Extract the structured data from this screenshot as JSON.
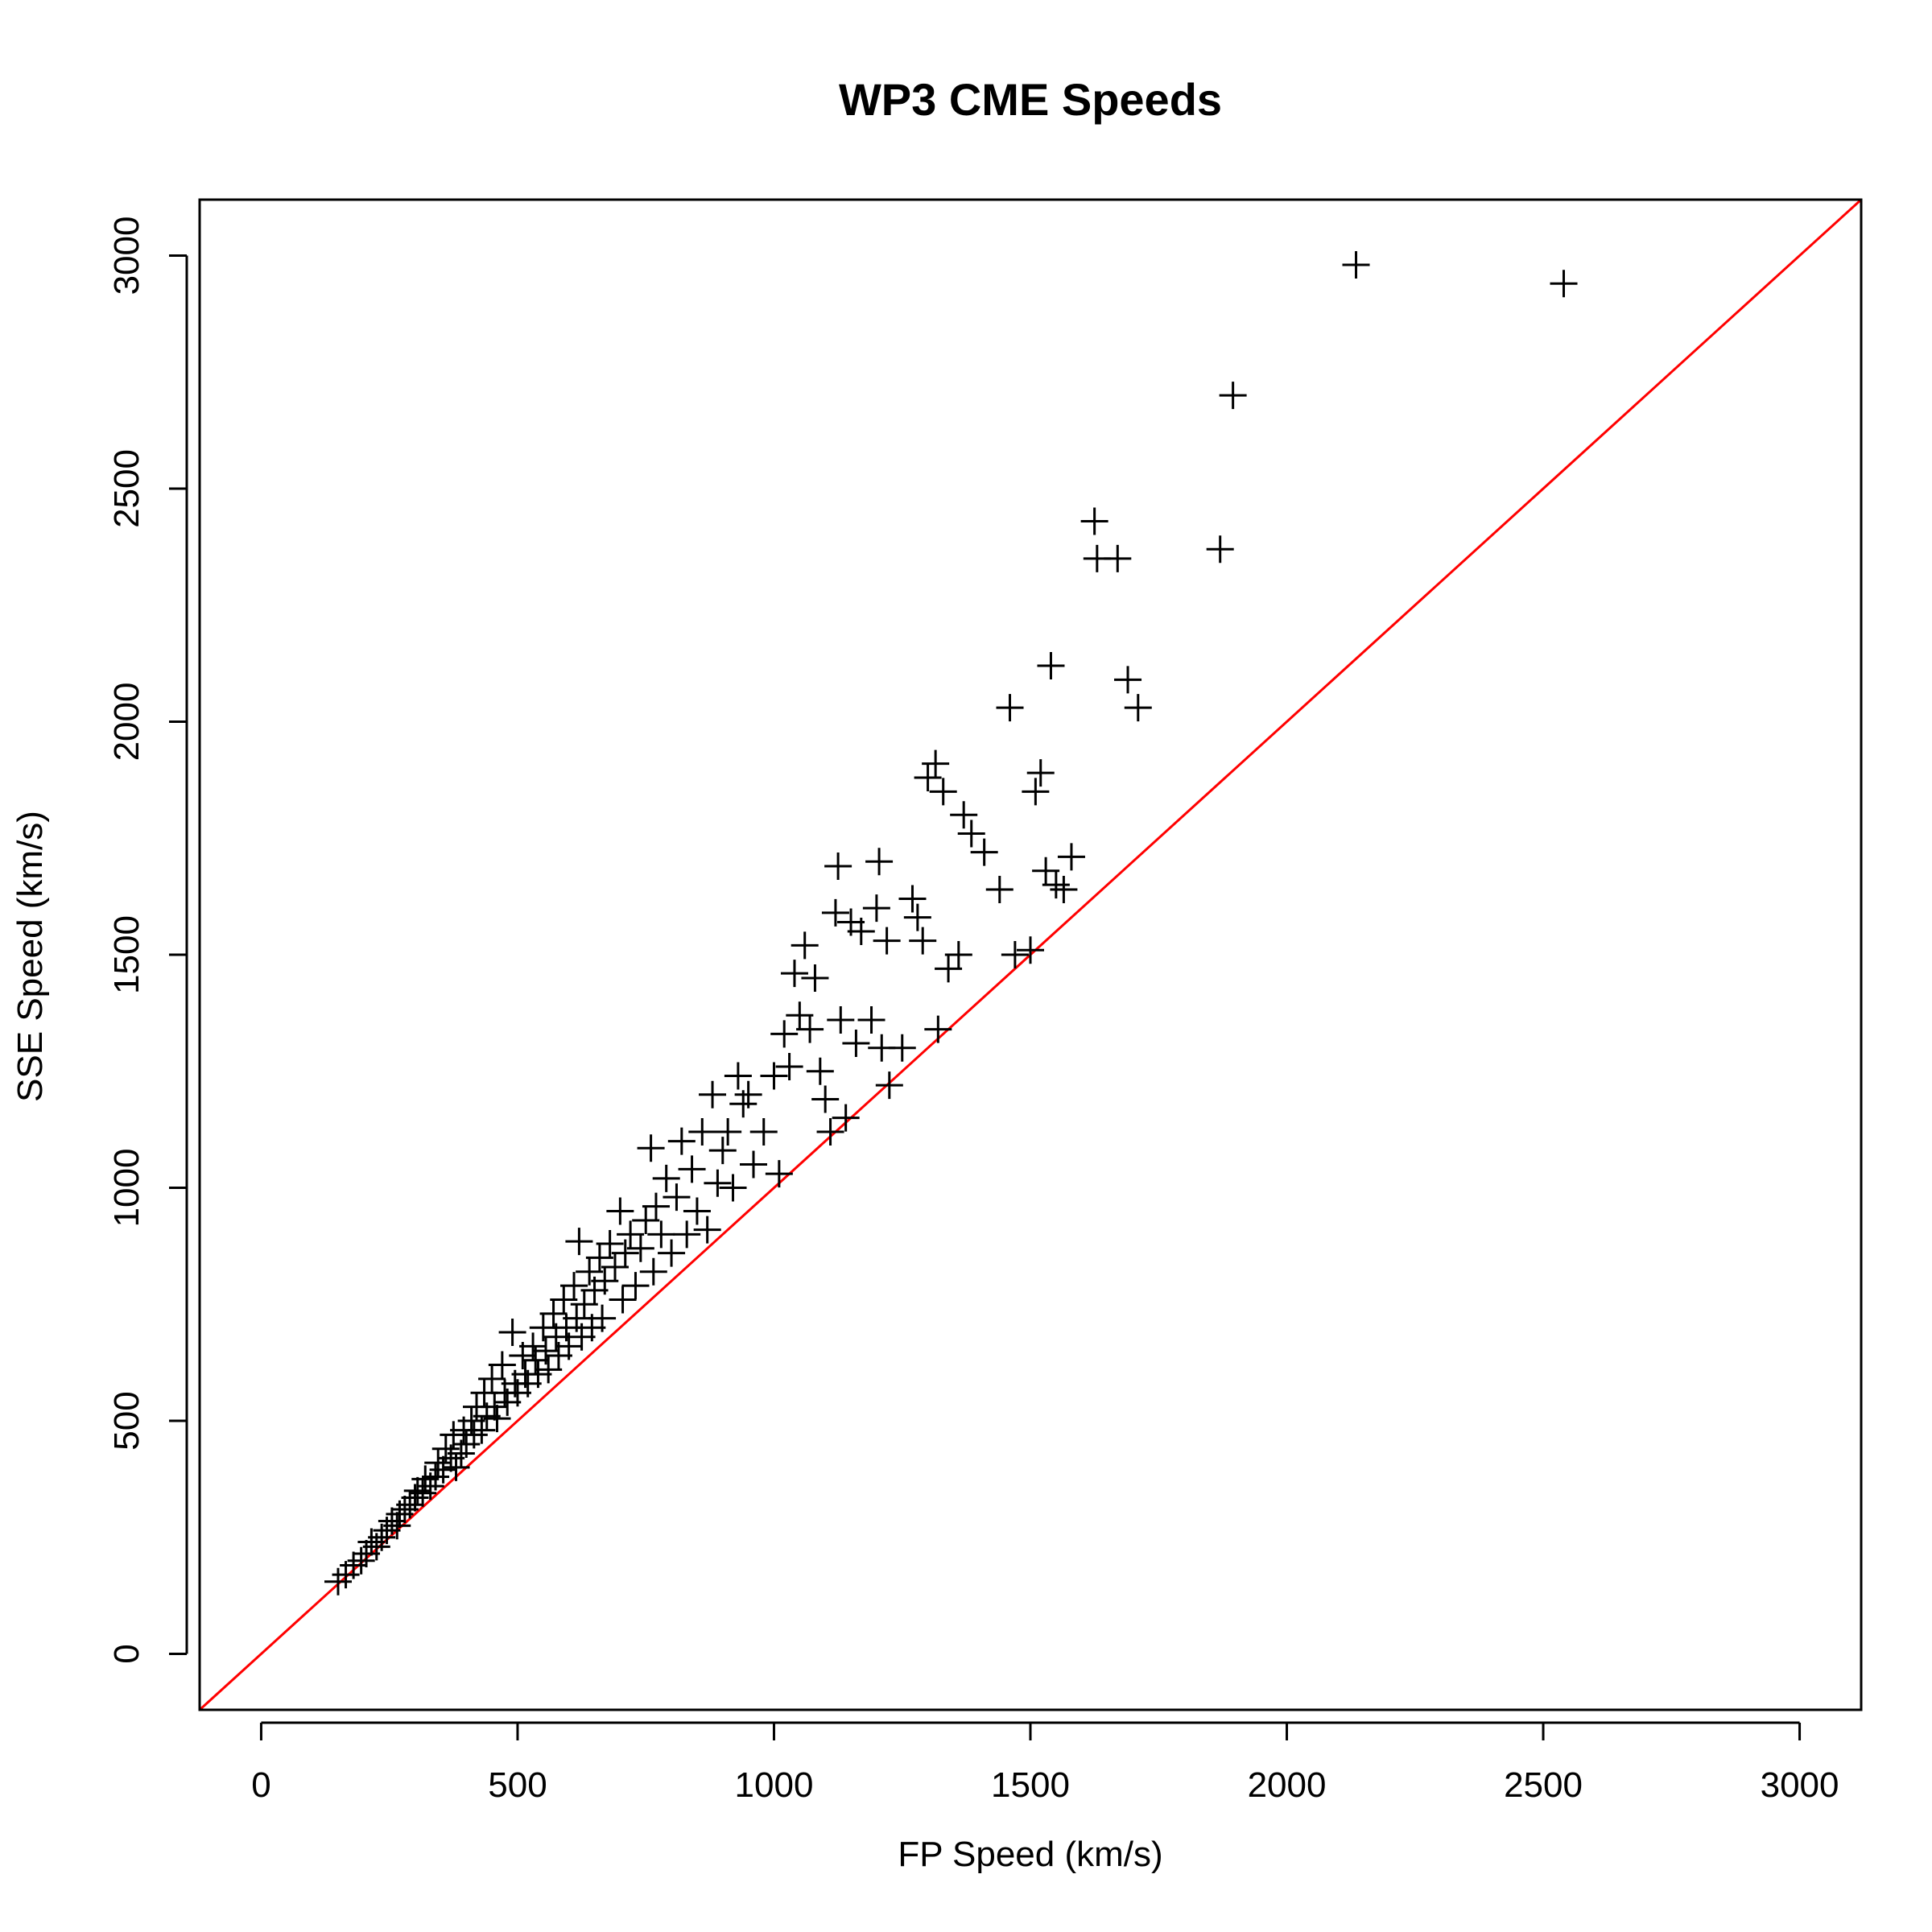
{
  "chart_data": {
    "type": "scatter",
    "title": "WP3 CME Speeds",
    "xlabel": "FP Speed (km/s)",
    "ylabel": "SSE Speed (km/s)",
    "xlim": [
      -120,
      3120
    ],
    "ylim": [
      -120,
      3120
    ],
    "xticks": [
      0,
      500,
      1000,
      1500,
      2000,
      2500,
      3000
    ],
    "yticks": [
      0,
      500,
      1000,
      1500,
      2000,
      2500,
      3000
    ],
    "grid": false,
    "legend": "none",
    "marker": "plus",
    "point_color": "#000000",
    "reference_line": {
      "type": "identity",
      "color": "#ff0000"
    },
    "series": [
      {
        "points": [
          [
            150,
            155
          ],
          [
            165,
            170
          ],
          [
            180,
            190
          ],
          [
            195,
            200
          ],
          [
            205,
            215
          ],
          [
            215,
            240
          ],
          [
            225,
            230
          ],
          [
            235,
            250
          ],
          [
            245,
            265
          ],
          [
            255,
            285
          ],
          [
            265,
            275
          ],
          [
            270,
            300
          ],
          [
            280,
            310
          ],
          [
            290,
            320
          ],
          [
            300,
            335
          ],
          [
            305,
            350
          ],
          [
            315,
            345
          ],
          [
            320,
            375
          ],
          [
            330,
            360
          ],
          [
            340,
            380
          ],
          [
            345,
            410
          ],
          [
            355,
            395
          ],
          [
            360,
            440
          ],
          [
            370,
            420
          ],
          [
            375,
            470
          ],
          [
            380,
            400
          ],
          [
            390,
            430
          ],
          [
            395,
            480
          ],
          [
            400,
            450
          ],
          [
            410,
            500
          ],
          [
            415,
            470
          ],
          [
            420,
            530
          ],
          [
            430,
            480
          ],
          [
            435,
            560
          ],
          [
            440,
            510
          ],
          [
            450,
            590
          ],
          [
            455,
            530
          ],
          [
            460,
            505
          ],
          [
            470,
            620
          ],
          [
            475,
            560
          ],
          [
            480,
            540
          ],
          [
            490,
            690
          ],
          [
            495,
            580
          ],
          [
            500,
            560
          ],
          [
            510,
            640
          ],
          [
            515,
            600
          ],
          [
            520,
            580
          ],
          [
            530,
            660
          ],
          [
            535,
            630
          ],
          [
            540,
            600
          ],
          [
            550,
            700
          ],
          [
            555,
            650
          ],
          [
            560,
            610
          ],
          [
            570,
            730
          ],
          [
            575,
            680
          ],
          [
            580,
            640
          ],
          [
            590,
            760
          ],
          [
            595,
            700
          ],
          [
            600,
            660
          ],
          [
            610,
            790
          ],
          [
            615,
            720
          ],
          [
            620,
            885
          ],
          [
            625,
            680
          ],
          [
            630,
            750
          ],
          [
            640,
            820
          ],
          [
            645,
            700
          ],
          [
            650,
            780
          ],
          [
            660,
            850
          ],
          [
            665,
            720
          ],
          [
            670,
            800
          ],
          [
            680,
            880
          ],
          [
            690,
            830
          ],
          [
            700,
            950
          ],
          [
            705,
            760
          ],
          [
            710,
            860
          ],
          [
            720,
            900
          ],
          [
            730,
            790
          ],
          [
            740,
            870
          ],
          [
            750,
            930
          ],
          [
            760,
            1085
          ],
          [
            765,
            820
          ],
          [
            770,
            960
          ],
          [
            780,
            900
          ],
          [
            790,
            1020
          ],
          [
            800,
            860
          ],
          [
            810,
            980
          ],
          [
            820,
            1100
          ],
          [
            830,
            900
          ],
          [
            840,
            1040
          ],
          [
            850,
            950
          ],
          [
            860,
            1120
          ],
          [
            870,
            910
          ],
          [
            880,
            1200
          ],
          [
            890,
            1010
          ],
          [
            900,
            1080
          ],
          [
            910,
            1120
          ],
          [
            920,
            1000
          ],
          [
            930,
            1240
          ],
          [
            940,
            1180
          ],
          [
            950,
            1200
          ],
          [
            960,
            1050
          ],
          [
            980,
            1120
          ],
          [
            1000,
            1240
          ],
          [
            1010,
            1030
          ],
          [
            1020,
            1330
          ],
          [
            1030,
            1260
          ],
          [
            1040,
            1460
          ],
          [
            1050,
            1370
          ],
          [
            1060,
            1520
          ],
          [
            1070,
            1340
          ],
          [
            1080,
            1450
          ],
          [
            1090,
            1250
          ],
          [
            1100,
            1190
          ],
          [
            1110,
            1120
          ],
          [
            1120,
            1590
          ],
          [
            1125,
            1690
          ],
          [
            1130,
            1360
          ],
          [
            1140,
            1150
          ],
          [
            1150,
            1570
          ],
          [
            1160,
            1310
          ],
          [
            1170,
            1550
          ],
          [
            1190,
            1360
          ],
          [
            1200,
            1600
          ],
          [
            1205,
            1700
          ],
          [
            1210,
            1300
          ],
          [
            1220,
            1530
          ],
          [
            1225,
            1220
          ],
          [
            1250,
            1300
          ],
          [
            1270,
            1620
          ],
          [
            1280,
            1580
          ],
          [
            1290,
            1530
          ],
          [
            1300,
            1880
          ],
          [
            1315,
            1910
          ],
          [
            1320,
            1340
          ],
          [
            1330,
            1850
          ],
          [
            1340,
            1470
          ],
          [
            1360,
            1500
          ],
          [
            1370,
            1800
          ],
          [
            1385,
            1760
          ],
          [
            1410,
            1720
          ],
          [
            1440,
            1640
          ],
          [
            1460,
            2030
          ],
          [
            1470,
            1500
          ],
          [
            1500,
            1510
          ],
          [
            1510,
            1850
          ],
          [
            1520,
            1890
          ],
          [
            1530,
            1680
          ],
          [
            1540,
            2120
          ],
          [
            1550,
            1650
          ],
          [
            1565,
            1640
          ],
          [
            1580,
            1710
          ],
          [
            1625,
            2430
          ],
          [
            1630,
            2350
          ],
          [
            1670,
            2350
          ],
          [
            1690,
            2090
          ],
          [
            1710,
            2030
          ],
          [
            1870,
            2370
          ],
          [
            1895,
            2700
          ],
          [
            2135,
            2980
          ],
          [
            2540,
            2940
          ]
        ]
      }
    ]
  }
}
